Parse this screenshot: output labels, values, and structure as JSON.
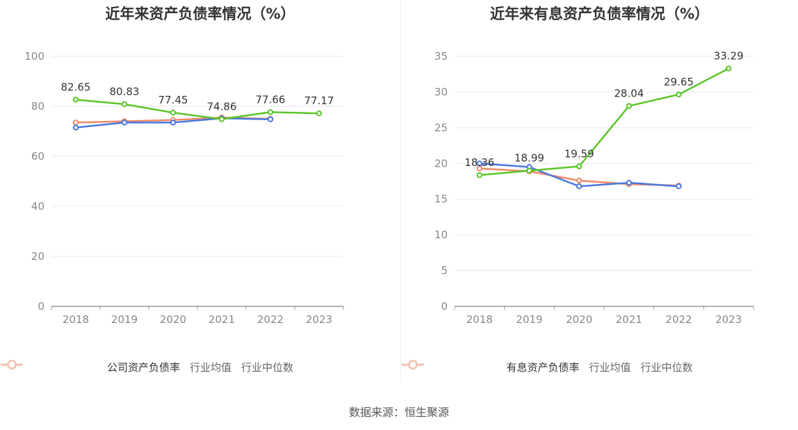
{
  "source_label": "数据来源：恒生聚源",
  "colors": {
    "company": "#5ac528",
    "industry_avg": "#4a78e0",
    "industry_median": "#f0896a",
    "grid": "#e6e8f0",
    "axis": "#999999",
    "tick_text": "#888888",
    "label_text": "#333333"
  },
  "chart_data": [
    {
      "type": "line",
      "title": "近年来资产负债率情况（%）",
      "x": [
        "2018",
        "2019",
        "2020",
        "2021",
        "2022",
        "2023"
      ],
      "ylim": [
        0,
        100
      ],
      "yticks": [
        0,
        20,
        40,
        60,
        80,
        100
      ],
      "series": [
        {
          "name": "公司资产负债率",
          "color_key": "company",
          "values": [
            82.65,
            80.83,
            77.45,
            74.86,
            77.66,
            77.17
          ],
          "labels": [
            "82.65",
            "80.83",
            "77.45",
            "74.86",
            "77.66",
            "77.17"
          ]
        },
        {
          "name": "行业均值",
          "color_key": "industry_avg",
          "values": [
            71.5,
            73.5,
            73.5,
            75.2,
            74.8,
            null
          ]
        },
        {
          "name": "行业中位数",
          "color_key": "industry_median",
          "values": [
            73.5,
            74.0,
            74.5,
            75.5,
            75.0,
            null
          ]
        }
      ],
      "legend": "bottom"
    },
    {
      "type": "line",
      "title": "近年来有息资产负债率情况（%）",
      "x": [
        "2018",
        "2019",
        "2020",
        "2021",
        "2022",
        "2023"
      ],
      "ylim": [
        0,
        35
      ],
      "yticks": [
        0,
        5,
        10,
        15,
        20,
        25,
        30,
        35
      ],
      "series": [
        {
          "name": "有息资产负债率",
          "color_key": "company",
          "values": [
            18.36,
            18.99,
            19.59,
            28.04,
            29.65,
            33.29
          ],
          "labels": [
            "18.36",
            "18.99",
            "19.59",
            "28.04",
            "29.65",
            "33.29"
          ]
        },
        {
          "name": "行业均值",
          "color_key": "industry_avg",
          "values": [
            20.0,
            19.5,
            16.8,
            17.3,
            16.8,
            null
          ]
        },
        {
          "name": "行业中位数",
          "color_key": "industry_median",
          "values": [
            19.3,
            18.9,
            17.6,
            17.1,
            16.9,
            null
          ]
        }
      ],
      "legend": "bottom"
    }
  ]
}
